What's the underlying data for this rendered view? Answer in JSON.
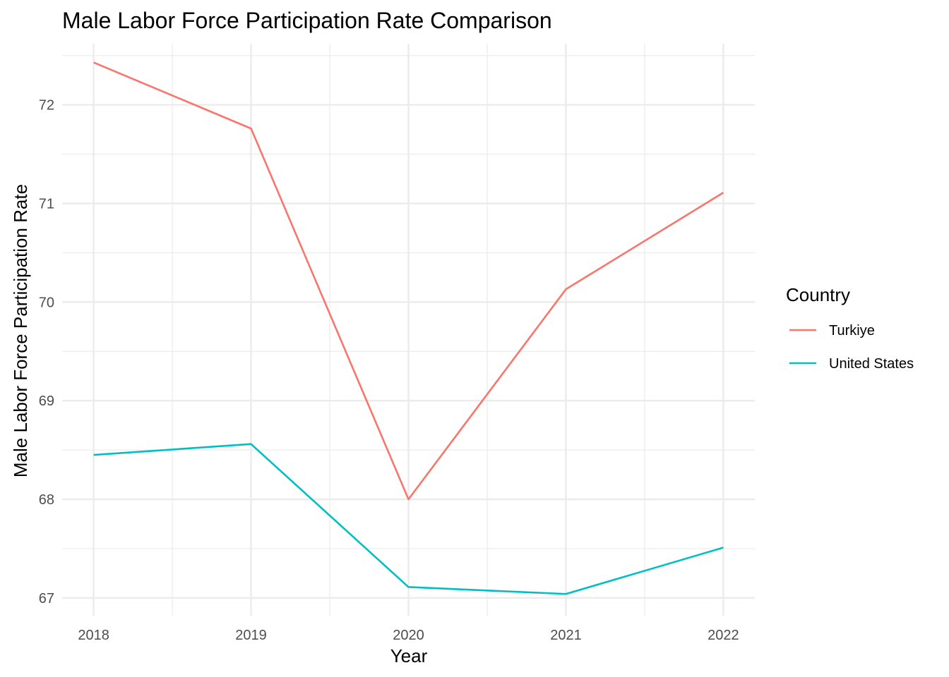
{
  "chart_data": {
    "type": "line",
    "title": "Male Labor Force Participation Rate Comparison",
    "xlabel": "Year",
    "ylabel": "Male Labor Force Participation Rate",
    "x": [
      2018,
      2019,
      2020,
      2021,
      2022
    ],
    "xticks": [
      "2018",
      "2019",
      "2020",
      "2021",
      "2022"
    ],
    "yticks": [
      67,
      68,
      69,
      70,
      71,
      72
    ],
    "ylim": [
      66.82,
      72.62
    ],
    "xlim": [
      2017.8,
      2022.2
    ],
    "grid": true,
    "legend": {
      "title": "Country",
      "placement": "right"
    },
    "series": [
      {
        "name": "Turkiye",
        "color": "#F8766D",
        "values": [
          72.43,
          71.76,
          68.0,
          70.13,
          71.11
        ]
      },
      {
        "name": "United States",
        "color": "#00BFC4",
        "values": [
          68.45,
          68.56,
          67.11,
          67.04,
          67.51
        ]
      }
    ]
  }
}
